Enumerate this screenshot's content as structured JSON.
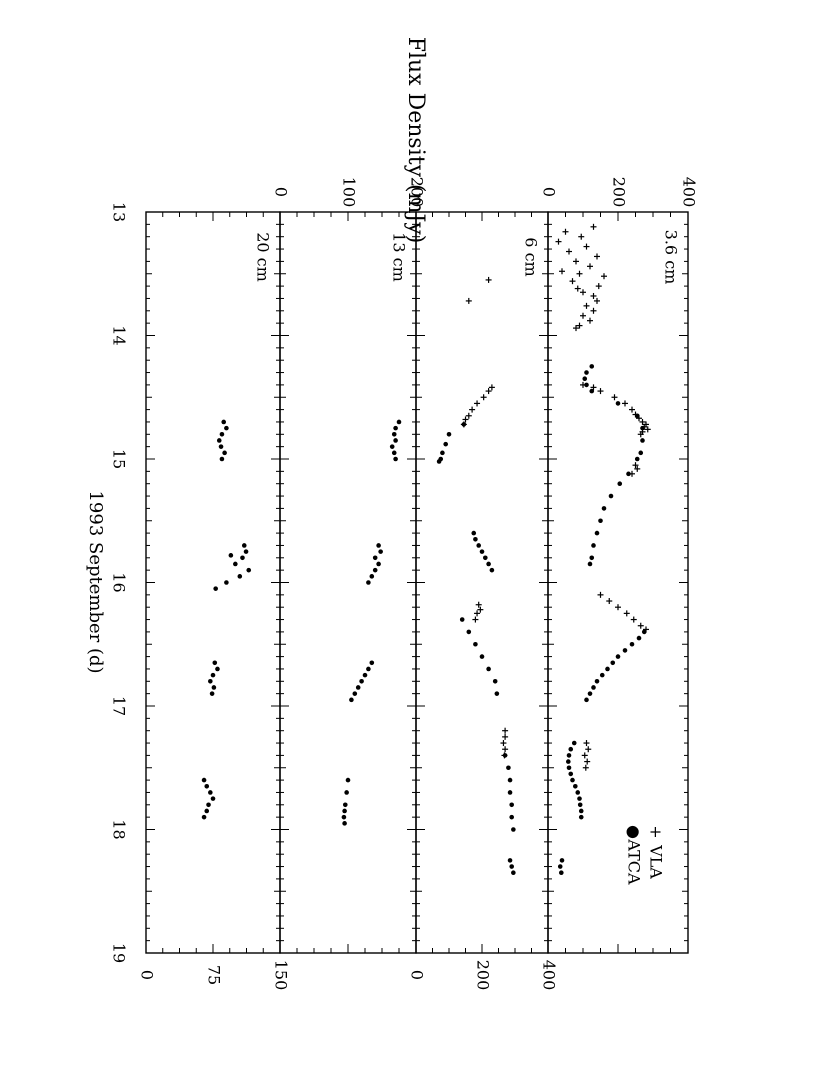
{
  "chart_data": {
    "type": "scatter",
    "title": "",
    "xlabel": "1993 September (d)",
    "ylabel": "Flux Density (mJy)",
    "xlim": [
      13,
      19
    ],
    "xticks": [
      "13",
      "14",
      "15",
      "16",
      "17",
      "18",
      "19"
    ],
    "legend": {
      "position": "top-right",
      "entries": [
        {
          "symbol": "+",
          "label": "VLA"
        },
        {
          "symbol": "●",
          "label": "ATCA"
        }
      ]
    },
    "panels": [
      {
        "label": "3.6 cm",
        "ylim": [
          0,
          400
        ],
        "yticks_left": [
          "0",
          "200",
          "400"
        ],
        "yticks_right": [],
        "series": [
          {
            "name": "VLA",
            "marker": "plus",
            "points": [
              [
                13.12,
                130
              ],
              [
                13.16,
                50
              ],
              [
                13.2,
                95
              ],
              [
                13.24,
                30
              ],
              [
                13.28,
                110
              ],
              [
                13.32,
                60
              ],
              [
                13.36,
                140
              ],
              [
                13.4,
                80
              ],
              [
                13.44,
                120
              ],
              [
                13.48,
                40
              ],
              [
                13.5,
                90
              ],
              [
                13.52,
                160
              ],
              [
                13.56,
                70
              ],
              [
                13.6,
                145
              ],
              [
                13.62,
                85
              ],
              [
                13.65,
                100
              ],
              [
                13.68,
                130
              ],
              [
                13.72,
                140
              ],
              [
                13.76,
                110
              ],
              [
                13.8,
                130
              ],
              [
                13.84,
                100
              ],
              [
                13.88,
                120
              ],
              [
                13.92,
                90
              ],
              [
                13.94,
                80
              ],
              [
                14.4,
                100
              ],
              [
                14.42,
                130
              ],
              [
                14.45,
                150
              ],
              [
                14.5,
                190
              ],
              [
                14.55,
                220
              ],
              [
                14.6,
                240
              ],
              [
                14.64,
                250
              ],
              [
                14.67,
                260
              ],
              [
                14.7,
                270
              ],
              [
                14.72,
                280
              ],
              [
                14.74,
                275
              ],
              [
                14.76,
                285
              ],
              [
                14.78,
                270
              ],
              [
                14.8,
                265
              ],
              [
                15.05,
                250
              ],
              [
                15.08,
                255
              ],
              [
                15.12,
                240
              ],
              [
                16.1,
                150
              ],
              [
                16.15,
                175
              ],
              [
                16.2,
                200
              ],
              [
                16.25,
                225
              ],
              [
                16.3,
                245
              ],
              [
                16.35,
                265
              ],
              [
                16.38,
                280
              ],
              [
                17.3,
                110
              ],
              [
                17.35,
                115
              ],
              [
                17.4,
                105
              ],
              [
                17.45,
                112
              ],
              [
                17.5,
                108
              ]
            ]
          },
          {
            "name": "ATCA",
            "marker": "dot",
            "points": [
              [
                14.25,
                125
              ],
              [
                14.3,
                110
              ],
              [
                14.35,
                105
              ],
              [
                14.4,
                110
              ],
              [
                14.45,
                125
              ],
              [
                14.55,
                200
              ],
              [
                14.65,
                255
              ],
              [
                14.75,
                270
              ],
              [
                14.85,
                270
              ],
              [
                14.95,
                265
              ],
              [
                15.0,
                255
              ],
              [
                15.12,
                230
              ],
              [
                15.2,
                205
              ],
              [
                15.3,
                180
              ],
              [
                15.4,
                160
              ],
              [
                15.5,
                150
              ],
              [
                15.6,
                140
              ],
              [
                15.7,
                130
              ],
              [
                15.8,
                125
              ],
              [
                15.85,
                120
              ],
              [
                16.4,
                275
              ],
              [
                16.45,
                260
              ],
              [
                16.5,
                240
              ],
              [
                16.55,
                220
              ],
              [
                16.6,
                200
              ],
              [
                16.65,
                185
              ],
              [
                16.7,
                170
              ],
              [
                16.75,
                155
              ],
              [
                16.8,
                140
              ],
              [
                16.85,
                130
              ],
              [
                16.9,
                120
              ],
              [
                16.95,
                110
              ],
              [
                17.3,
                75
              ],
              [
                17.35,
                65
              ],
              [
                17.4,
                60
              ],
              [
                17.45,
                58
              ],
              [
                17.5,
                60
              ],
              [
                17.55,
                65
              ],
              [
                17.6,
                70
              ],
              [
                17.65,
                78
              ],
              [
                17.7,
                85
              ],
              [
                17.75,
                90
              ],
              [
                17.8,
                92
              ],
              [
                17.85,
                95
              ],
              [
                17.9,
                95
              ],
              [
                18.25,
                40
              ],
              [
                18.3,
                35
              ],
              [
                18.35,
                38
              ]
            ]
          }
        ]
      },
      {
        "label": "6 cm",
        "ylim": [
          0,
          400
        ],
        "yticks_left": [],
        "yticks_right": [
          "0",
          "200",
          "400"
        ],
        "series": [
          {
            "name": "VLA",
            "marker": "plus",
            "points": [
              [
                13.55,
                220
              ],
              [
                13.72,
                160
              ],
              [
                14.42,
                230
              ],
              [
                14.45,
                220
              ],
              [
                14.5,
                205
              ],
              [
                14.55,
                185
              ],
              [
                14.6,
                170
              ],
              [
                14.65,
                160
              ],
              [
                14.68,
                150
              ],
              [
                14.72,
                145
              ],
              [
                16.18,
                190
              ],
              [
                16.22,
                195
              ],
              [
                16.25,
                185
              ],
              [
                16.3,
                180
              ],
              [
                17.2,
                270
              ],
              [
                17.25,
                270
              ],
              [
                17.3,
                265
              ],
              [
                17.35,
                270
              ],
              [
                17.4,
                268
              ]
            ]
          },
          {
            "name": "ATCA",
            "marker": "dot",
            "points": [
              [
                14.72,
                145
              ],
              [
                14.8,
                100
              ],
              [
                14.88,
                90
              ],
              [
                14.95,
                80
              ],
              [
                15.0,
                75
              ],
              [
                15.02,
                70
              ],
              [
                15.6,
                175
              ],
              [
                15.65,
                180
              ],
              [
                15.7,
                190
              ],
              [
                15.75,
                200
              ],
              [
                15.8,
                210
              ],
              [
                15.85,
                220
              ],
              [
                15.9,
                230
              ],
              [
                16.3,
                140
              ],
              [
                16.4,
                160
              ],
              [
                16.5,
                180
              ],
              [
                16.6,
                200
              ],
              [
                16.7,
                220
              ],
              [
                16.8,
                240
              ],
              [
                16.9,
                245
              ],
              [
                17.4,
                270
              ],
              [
                17.5,
                280
              ],
              [
                17.6,
                285
              ],
              [
                17.7,
                285
              ],
              [
                17.8,
                290
              ],
              [
                17.9,
                290
              ],
              [
                18.0,
                295
              ],
              [
                18.25,
                285
              ],
              [
                18.3,
                290
              ],
              [
                18.35,
                295
              ]
            ]
          }
        ]
      },
      {
        "label": "13 cm",
        "ylim": [
          0,
          200
        ],
        "yticks_left": [
          "0",
          "100",
          "200"
        ],
        "yticks_right": [],
        "series": [
          {
            "name": "ATCA",
            "marker": "dot",
            "points": [
              [
                14.7,
                175
              ],
              [
                14.75,
                170
              ],
              [
                14.8,
                168
              ],
              [
                14.85,
                170
              ],
              [
                14.9,
                165
              ],
              [
                14.95,
                168
              ],
              [
                15.0,
                170
              ],
              [
                15.7,
                145
              ],
              [
                15.75,
                148
              ],
              [
                15.8,
                140
              ],
              [
                15.85,
                145
              ],
              [
                15.9,
                140
              ],
              [
                15.95,
                135
              ],
              [
                16.0,
                130
              ],
              [
                16.65,
                135
              ],
              [
                16.7,
                130
              ],
              [
                16.75,
                125
              ],
              [
                16.8,
                120
              ],
              [
                16.85,
                115
              ],
              [
                16.9,
                110
              ],
              [
                16.95,
                105
              ],
              [
                17.6,
                100
              ],
              [
                17.7,
                98
              ],
              [
                17.8,
                96
              ],
              [
                17.85,
                95
              ],
              [
                17.9,
                94
              ],
              [
                17.95,
                95
              ]
            ]
          }
        ]
      },
      {
        "label": "20 cm",
        "ylim": [
          0,
          150
        ],
        "yticks_left": [],
        "yticks_right": [
          "0",
          "75",
          "150"
        ],
        "series": [
          {
            "name": "ATCA",
            "marker": "dot",
            "points": [
              [
                14.7,
                87
              ],
              [
                14.75,
                90
              ],
              [
                14.8,
                85
              ],
              [
                14.85,
                82
              ],
              [
                14.9,
                84
              ],
              [
                14.95,
                88
              ],
              [
                15.0,
                85
              ],
              [
                15.7,
                110
              ],
              [
                15.75,
                112
              ],
              [
                15.78,
                95
              ],
              [
                15.8,
                108
              ],
              [
                15.85,
                100
              ],
              [
                15.9,
                115
              ],
              [
                15.95,
                105
              ],
              [
                16.0,
                90
              ],
              [
                16.05,
                78
              ],
              [
                16.65,
                77
              ],
              [
                16.7,
                80
              ],
              [
                16.75,
                75
              ],
              [
                16.8,
                72
              ],
              [
                16.85,
                76
              ],
              [
                16.9,
                74
              ],
              [
                17.6,
                65
              ],
              [
                17.65,
                68
              ],
              [
                17.7,
                72
              ],
              [
                17.75,
                75
              ],
              [
                17.8,
                70
              ],
              [
                17.85,
                68
              ],
              [
                17.9,
                65
              ]
            ]
          }
        ]
      }
    ]
  }
}
